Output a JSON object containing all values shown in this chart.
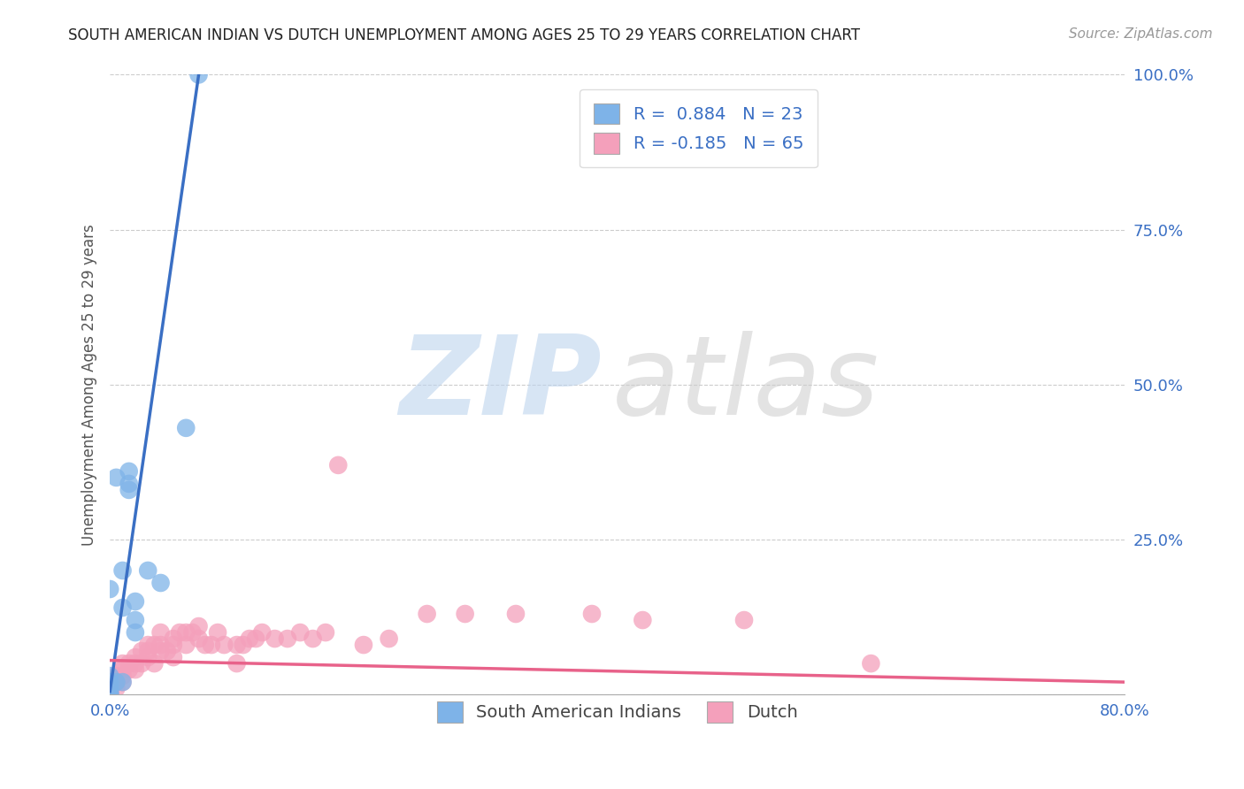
{
  "title": "SOUTH AMERICAN INDIAN VS DUTCH UNEMPLOYMENT AMONG AGES 25 TO 29 YEARS CORRELATION CHART",
  "source": "Source: ZipAtlas.com",
  "ylabel": "Unemployment Among Ages 25 to 29 years",
  "xlim": [
    0.0,
    0.8
  ],
  "ylim": [
    0.0,
    1.0
  ],
  "blue_color": "#7EB3E8",
  "pink_color": "#F4A0BB",
  "blue_line_color": "#3A6FC4",
  "pink_line_color": "#E8628A",
  "legend_R_blue": "R =  0.884   N = 23",
  "legend_R_pink": "R = -0.185   N = 65",
  "blue_points_x": [
    0.0,
    0.0,
    0.0,
    0.0,
    0.0,
    0.0,
    0.0,
    0.0,
    0.005,
    0.005,
    0.01,
    0.01,
    0.01,
    0.015,
    0.015,
    0.015,
    0.02,
    0.02,
    0.02,
    0.03,
    0.04,
    0.06,
    0.07
  ],
  "blue_points_y": [
    0.0,
    0.0,
    0.005,
    0.01,
    0.015,
    0.02,
    0.03,
    0.17,
    0.02,
    0.35,
    0.02,
    0.14,
    0.2,
    0.33,
    0.34,
    0.36,
    0.1,
    0.12,
    0.15,
    0.2,
    0.18,
    0.43,
    1.0
  ],
  "pink_points_x": [
    0.0,
    0.0,
    0.0,
    0.0,
    0.0,
    0.0,
    0.0,
    0.0,
    0.005,
    0.005,
    0.005,
    0.01,
    0.01,
    0.01,
    0.01,
    0.015,
    0.015,
    0.02,
    0.02,
    0.02,
    0.025,
    0.025,
    0.03,
    0.03,
    0.03,
    0.035,
    0.035,
    0.04,
    0.04,
    0.04,
    0.045,
    0.05,
    0.05,
    0.05,
    0.055,
    0.06,
    0.06,
    0.065,
    0.07,
    0.07,
    0.075,
    0.08,
    0.085,
    0.09,
    0.1,
    0.1,
    0.105,
    0.11,
    0.115,
    0.12,
    0.13,
    0.14,
    0.15,
    0.16,
    0.17,
    0.18,
    0.2,
    0.22,
    0.25,
    0.28,
    0.32,
    0.38,
    0.42,
    0.5,
    0.6
  ],
  "pink_points_y": [
    0.0,
    0.0,
    0.0,
    0.005,
    0.005,
    0.01,
    0.015,
    0.02,
    0.01,
    0.02,
    0.03,
    0.02,
    0.03,
    0.04,
    0.05,
    0.04,
    0.05,
    0.04,
    0.05,
    0.06,
    0.05,
    0.07,
    0.06,
    0.07,
    0.08,
    0.05,
    0.08,
    0.07,
    0.08,
    0.1,
    0.07,
    0.06,
    0.08,
    0.09,
    0.1,
    0.08,
    0.1,
    0.1,
    0.09,
    0.11,
    0.08,
    0.08,
    0.1,
    0.08,
    0.05,
    0.08,
    0.08,
    0.09,
    0.09,
    0.1,
    0.09,
    0.09,
    0.1,
    0.09,
    0.1,
    0.37,
    0.08,
    0.09,
    0.13,
    0.13,
    0.13,
    0.13,
    0.12,
    0.12,
    0.05
  ],
  "blue_trendline_x": [
    0.0,
    0.07
  ],
  "blue_trendline_y": [
    0.005,
    1.0
  ],
  "pink_trendline_x": [
    0.0,
    0.8
  ],
  "pink_trendline_y": [
    0.055,
    0.02
  ]
}
